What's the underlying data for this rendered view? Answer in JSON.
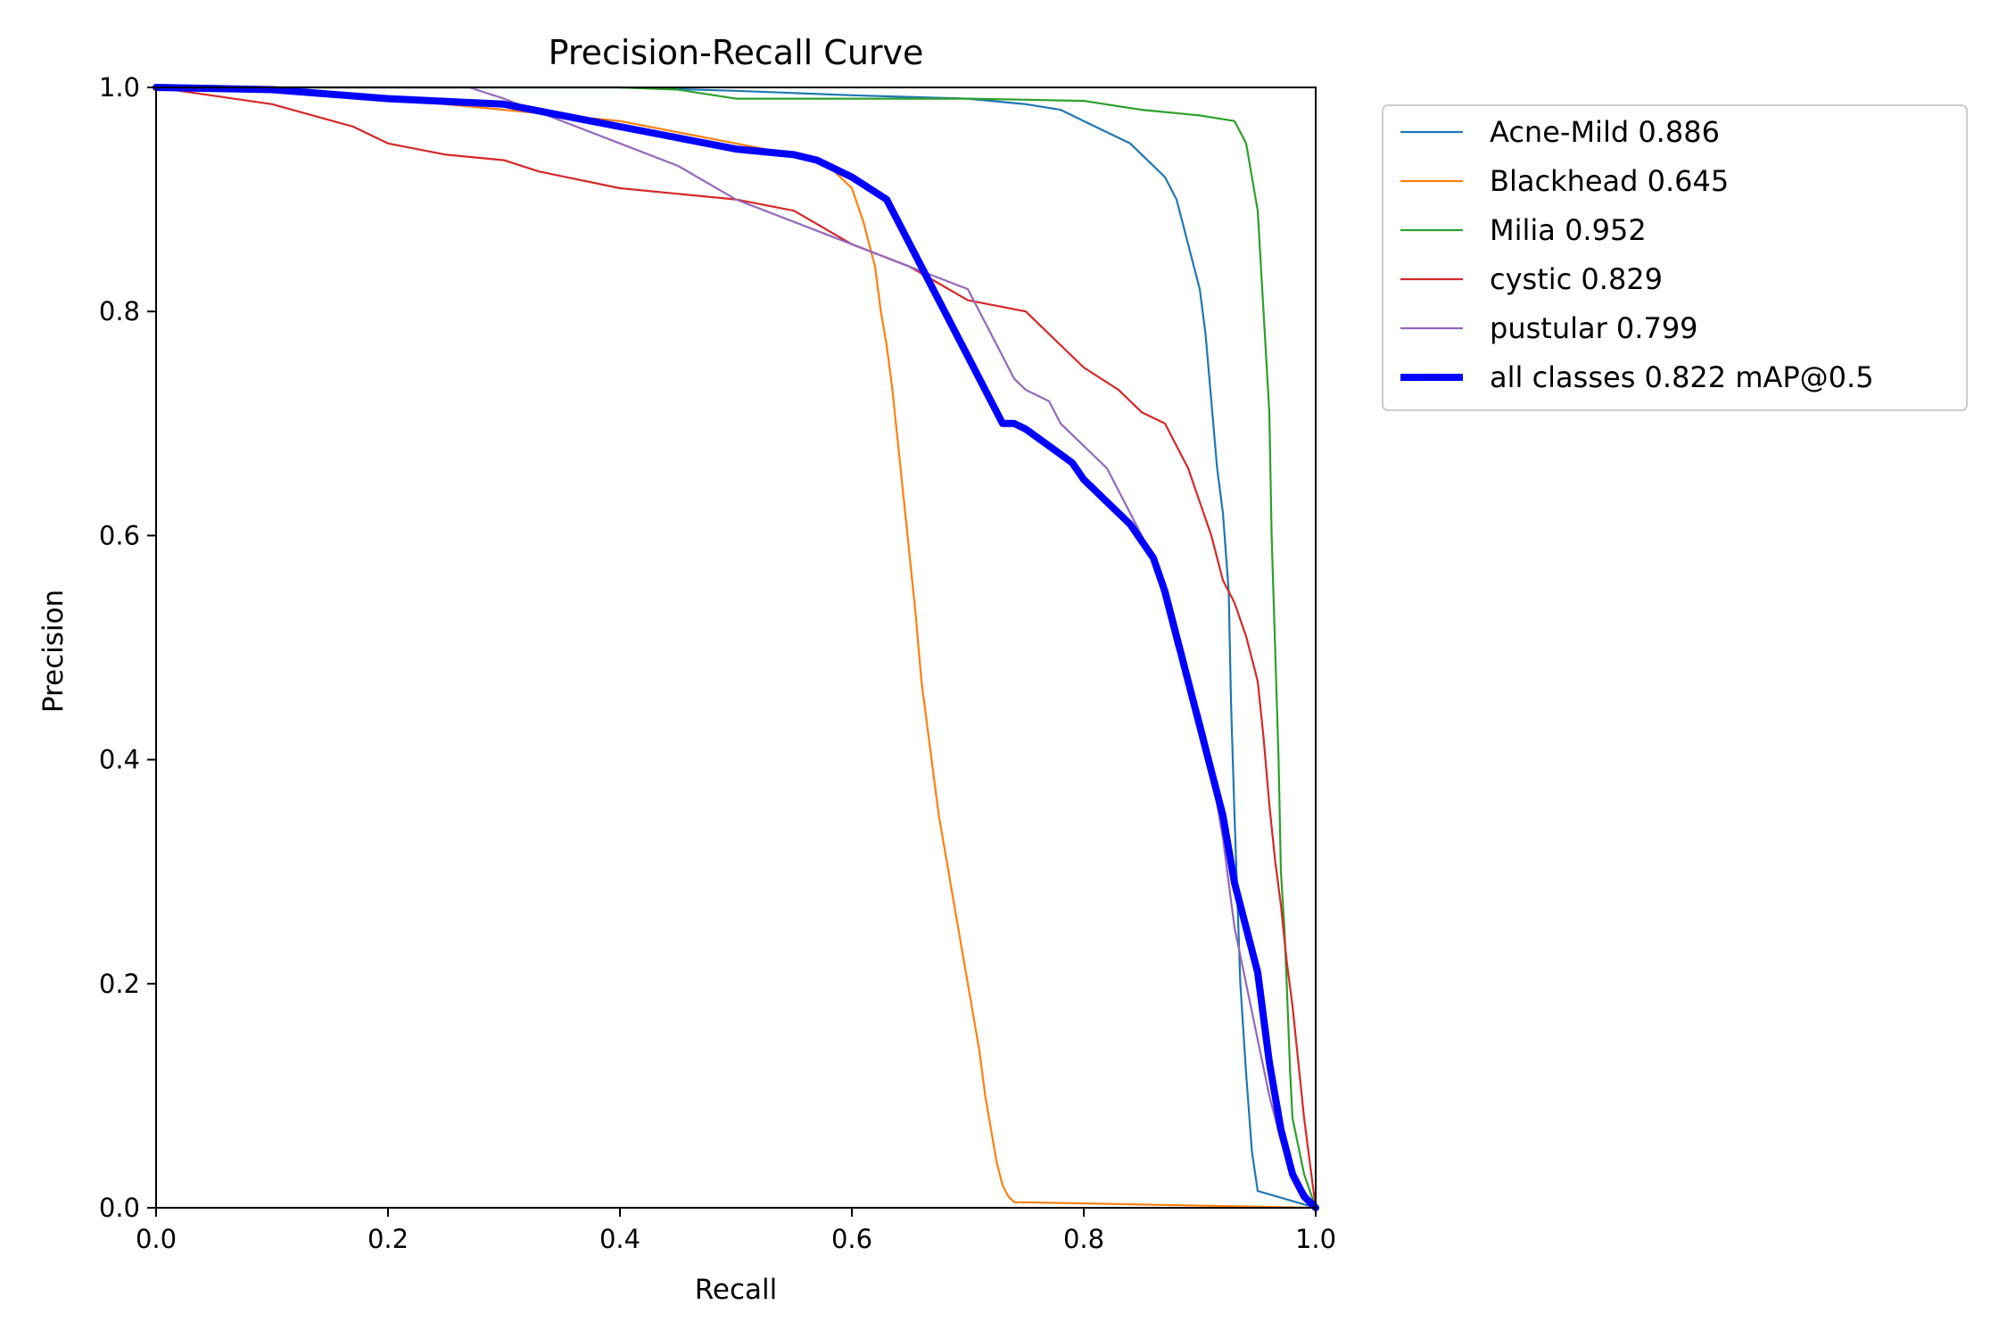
{
  "chart_data": {
    "type": "line",
    "title": "Precision-Recall Curve",
    "xlabel": "Recall",
    "ylabel": "Precision",
    "xlim": [
      0,
      1
    ],
    "ylim": [
      0,
      1
    ],
    "xticks": [
      "0.0",
      "0.2",
      "0.4",
      "0.6",
      "0.8",
      "1.0"
    ],
    "yticks": [
      "0.0",
      "0.2",
      "0.4",
      "0.6",
      "0.8",
      "1.0"
    ],
    "grid": false,
    "legend_position": "outside-top-right",
    "series": [
      {
        "name": "Acne-Mild 0.886",
        "color": "#1f77b4",
        "width": "thin",
        "x": [
          0,
          0.2,
          0.4,
          0.5,
          0.6,
          0.7,
          0.75,
          0.78,
          0.8,
          0.82,
          0.84,
          0.85,
          0.86,
          0.87,
          0.88,
          0.885,
          0.89,
          0.9,
          0.905,
          0.91,
          0.915,
          0.92,
          0.925,
          0.927,
          0.93,
          0.935,
          0.94,
          0.945,
          0.95,
          1.0
        ],
        "y": [
          1.0,
          1.0,
          1.0,
          0.997,
          0.993,
          0.99,
          0.985,
          0.98,
          0.97,
          0.96,
          0.95,
          0.94,
          0.93,
          0.92,
          0.9,
          0.88,
          0.86,
          0.82,
          0.78,
          0.72,
          0.66,
          0.62,
          0.55,
          0.45,
          0.35,
          0.2,
          0.12,
          0.05,
          0.015,
          0.0
        ]
      },
      {
        "name": "Blackhead 0.645",
        "color": "#ff7f0e",
        "width": "thin",
        "x": [
          0,
          0.1,
          0.2,
          0.3,
          0.4,
          0.5,
          0.55,
          0.58,
          0.6,
          0.61,
          0.62,
          0.625,
          0.63,
          0.635,
          0.64,
          0.645,
          0.65,
          0.655,
          0.66,
          0.665,
          0.67,
          0.675,
          0.68,
          0.685,
          0.69,
          0.695,
          0.7,
          0.705,
          0.71,
          0.715,
          0.72,
          0.725,
          0.73,
          0.735,
          0.74,
          1.0
        ],
        "y": [
          1.0,
          1.0,
          0.99,
          0.98,
          0.97,
          0.95,
          0.94,
          0.93,
          0.91,
          0.88,
          0.84,
          0.8,
          0.77,
          0.73,
          0.68,
          0.63,
          0.58,
          0.53,
          0.47,
          0.43,
          0.39,
          0.35,
          0.32,
          0.29,
          0.26,
          0.23,
          0.2,
          0.17,
          0.14,
          0.1,
          0.07,
          0.04,
          0.02,
          0.01,
          0.005,
          0.0
        ]
      },
      {
        "name": "Milia 0.952",
        "color": "#2ca02c",
        "width": "thin",
        "x": [
          0,
          0.4,
          0.45,
          0.5,
          0.6,
          0.7,
          0.75,
          0.8,
          0.85,
          0.9,
          0.93,
          0.94,
          0.945,
          0.95,
          0.955,
          0.96,
          0.962,
          0.965,
          0.968,
          0.97,
          0.973,
          0.975,
          0.978,
          0.98,
          0.99,
          1.0
        ],
        "y": [
          1.0,
          1.0,
          0.998,
          0.99,
          0.99,
          0.99,
          0.989,
          0.988,
          0.98,
          0.975,
          0.97,
          0.95,
          0.92,
          0.89,
          0.8,
          0.71,
          0.6,
          0.5,
          0.4,
          0.3,
          0.25,
          0.2,
          0.12,
          0.08,
          0.03,
          0.0
        ]
      },
      {
        "name": "cystic 0.829",
        "color": "#d62728",
        "width": "thin",
        "x": [
          0,
          0.1,
          0.17,
          0.2,
          0.25,
          0.3,
          0.33,
          0.4,
          0.45,
          0.5,
          0.55,
          0.6,
          0.65,
          0.7,
          0.75,
          0.76,
          0.8,
          0.83,
          0.85,
          0.87,
          0.88,
          0.89,
          0.9,
          0.91,
          0.915,
          0.92,
          0.93,
          0.94,
          0.95,
          0.955,
          0.96,
          0.965,
          0.97,
          0.975,
          0.98,
          0.99,
          1.0
        ],
        "y": [
          1.0,
          0.985,
          0.965,
          0.95,
          0.94,
          0.935,
          0.925,
          0.91,
          0.905,
          0.9,
          0.89,
          0.86,
          0.84,
          0.81,
          0.8,
          0.79,
          0.75,
          0.73,
          0.71,
          0.7,
          0.68,
          0.66,
          0.63,
          0.6,
          0.58,
          0.56,
          0.54,
          0.51,
          0.47,
          0.42,
          0.36,
          0.31,
          0.27,
          0.22,
          0.18,
          0.08,
          0.0
        ]
      },
      {
        "name": "pustular 0.799",
        "color": "#9467bd",
        "width": "thin",
        "x": [
          0,
          0.2,
          0.27,
          0.3,
          0.35,
          0.4,
          0.45,
          0.5,
          0.55,
          0.6,
          0.65,
          0.7,
          0.71,
          0.72,
          0.73,
          0.74,
          0.75,
          0.77,
          0.78,
          0.8,
          0.82,
          0.84,
          0.86,
          0.87,
          0.88,
          0.89,
          0.9,
          0.905,
          0.91,
          0.915,
          0.92,
          0.925,
          0.93,
          0.94,
          0.95,
          0.96,
          0.97,
          0.98,
          1.0
        ],
        "y": [
          1.0,
          1.0,
          1.0,
          0.99,
          0.97,
          0.95,
          0.93,
          0.9,
          0.88,
          0.86,
          0.84,
          0.82,
          0.8,
          0.78,
          0.76,
          0.74,
          0.73,
          0.72,
          0.7,
          0.68,
          0.66,
          0.62,
          0.58,
          0.54,
          0.5,
          0.47,
          0.44,
          0.42,
          0.39,
          0.36,
          0.33,
          0.29,
          0.25,
          0.2,
          0.15,
          0.1,
          0.06,
          0.03,
          0.0
        ]
      },
      {
        "name": "all classes 0.822 mAP@0.5",
        "color": "#0000ff",
        "width": "thick",
        "x": [
          0,
          0.1,
          0.2,
          0.3,
          0.35,
          0.4,
          0.45,
          0.5,
          0.55,
          0.57,
          0.6,
          0.63,
          0.64,
          0.65,
          0.66,
          0.67,
          0.68,
          0.69,
          0.7,
          0.71,
          0.72,
          0.73,
          0.74,
          0.75,
          0.77,
          0.79,
          0.8,
          0.82,
          0.84,
          0.86,
          0.87,
          0.88,
          0.89,
          0.9,
          0.91,
          0.92,
          0.925,
          0.93,
          0.94,
          0.95,
          0.955,
          0.96,
          0.965,
          0.97,
          0.975,
          0.98,
          0.985,
          0.99,
          1.0
        ],
        "y": [
          1.0,
          0.998,
          0.99,
          0.985,
          0.975,
          0.965,
          0.955,
          0.945,
          0.94,
          0.935,
          0.92,
          0.9,
          0.88,
          0.86,
          0.84,
          0.82,
          0.8,
          0.78,
          0.76,
          0.74,
          0.72,
          0.7,
          0.7,
          0.695,
          0.68,
          0.665,
          0.65,
          0.63,
          0.61,
          0.58,
          0.55,
          0.51,
          0.47,
          0.43,
          0.39,
          0.35,
          0.32,
          0.29,
          0.25,
          0.21,
          0.17,
          0.13,
          0.1,
          0.07,
          0.05,
          0.03,
          0.02,
          0.01,
          0.0
        ]
      }
    ]
  }
}
